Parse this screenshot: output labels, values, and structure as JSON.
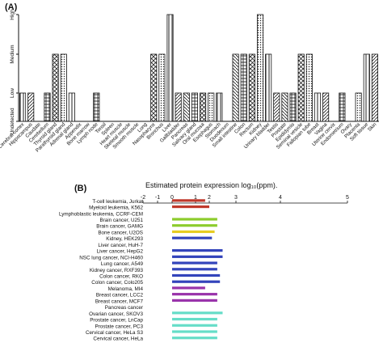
{
  "chart_data": [
    {
      "panel_label": "(A)",
      "type": "bar",
      "ylabel": "",
      "y_levels": [
        "Undetected",
        "Low",
        "Medium",
        "High"
      ],
      "categories": [
        "Cerebral cortex",
        "Hippocampus",
        "Caudate",
        "Cerebellum",
        "Thyroid gland",
        "Parathyroid gland",
        "Adrenal gland",
        "Appendix",
        "Bone marrow",
        "Lymph node",
        "Tonsil",
        "Spleen",
        "Heart muscle",
        "Skeletal muscle",
        "Smooth muscle",
        "Lung",
        "Nasopharynx",
        "Bronchus",
        "Liver",
        "Gallbladder",
        "Pancreas",
        "Salivary gland",
        "Oral mucosa",
        "Esophagus",
        "Stomach",
        "Duodenum",
        "Small intestine",
        "Colon",
        "Rectum",
        "Kidney",
        "Urinary bladder",
        "Testis",
        "Prostate",
        "Epididymis",
        "Seminal vesicle",
        "Fallopian tube",
        "Breast",
        "Vagina",
        "Uterine cervix",
        "Endometrium",
        "Ovary",
        "Placenta",
        "Soft tissue",
        "Skin"
      ],
      "values": [
        1,
        1,
        0,
        1,
        2,
        2,
        1,
        0,
        0,
        1,
        0,
        0,
        0,
        0,
        0,
        0,
        2,
        2,
        3,
        1,
        1,
        1,
        1,
        1,
        1,
        0,
        2,
        2,
        2,
        3,
        2,
        1,
        1,
        1,
        2,
        2,
        1,
        1,
        0,
        1,
        0,
        1,
        2,
        2
      ]
    },
    {
      "panel_label": "(B)",
      "type": "bar",
      "orientation": "horizontal",
      "title": "Estimated protein expression log₁₀(ppm).",
      "x_ticks": [
        "-2",
        "-1",
        "0",
        "1",
        "2",
        "3",
        "4",
        "5"
      ],
      "xlim": [
        -2,
        5
      ],
      "categories": [
        "T-cell leukemia, Jurkat",
        "Myeloid leukemia, K562",
        "Lymphoblastic leukemia, CCRF-CEM",
        "Brain cancer, U251",
        "Brain cancer, GAMG",
        "Bone cancer, U2OS",
        "Kidney, HEK293",
        "Liver cancer, HuH-7",
        "Liver cancer, HepG2",
        "NSC lung cancer, NCI-H460",
        "Lung cancer, A549",
        "Kidney cancer, RXF393",
        "Colon cancer, RKO",
        "Colon cancer, Colo205",
        "Melanoma, MI4",
        "Breast cancer, LCC2",
        "Breast cancer, MCF7",
        "Pancreas cancer",
        "Ovarian cancer, SKOV3",
        "Prostate cancer, LnCap",
        "Prostate cancer, PC3",
        "Cervical cancer, HeLa S3",
        "Cervical cancer, HeLa"
      ],
      "values": [
        1.7,
        2.0,
        null,
        2.3,
        2.3,
        2.2,
        2.1,
        null,
        2.5,
        2.5,
        2.3,
        2.3,
        2.4,
        2.4,
        1.7,
        2.3,
        2.3,
        null,
        2.5,
        2.3,
        2.3,
        2.3,
        2.3
      ],
      "colors": [
        "#c0392b",
        "#c0392b",
        "#c0392b",
        "#8ccc2c",
        "#8ccc2c",
        "#e6cc22",
        "#3344bb",
        "#3344bb",
        "#3344bb",
        "#3344bb",
        "#3344bb",
        "#3344bb",
        "#3344bb",
        "#3344bb",
        "#9933aa",
        "#9933aa",
        "#9933aa",
        "#9933aa",
        "#66ddc8",
        "#66ddc8",
        "#66ddc8",
        "#66ddc8",
        "#66ddc8"
      ]
    }
  ]
}
